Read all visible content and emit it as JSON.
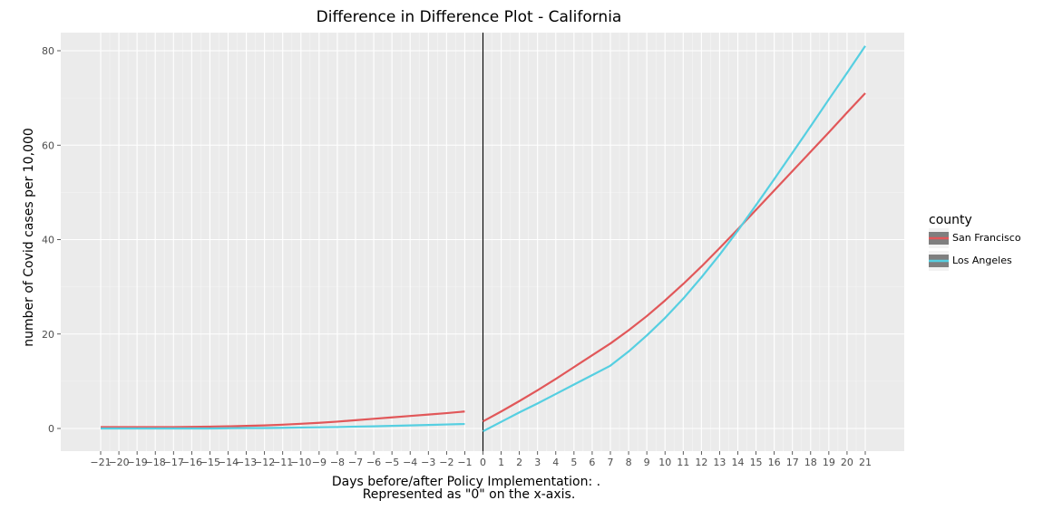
{
  "chart_data": {
    "type": "line",
    "title": "Difference in Difference Plot - California",
    "xlabel": "Days before/after Policy Implementation: .",
    "xlabel_line2": "Represented as \"0\" on the x-axis.",
    "ylabel": "number of Covid cases per 10,000",
    "xlim": [
      -21,
      21
    ],
    "ylim": [
      0,
      80
    ],
    "x_ticks": [
      -21,
      -20,
      -19,
      -18,
      -17,
      -16,
      -15,
      -14,
      -13,
      -12,
      -11,
      -10,
      -9,
      -8,
      -7,
      -6,
      -5,
      -4,
      -3,
      -2,
      -1,
      0,
      1,
      2,
      3,
      4,
      5,
      6,
      7,
      8,
      9,
      10,
      11,
      12,
      13,
      14,
      15,
      16,
      17,
      18,
      19,
      20,
      21
    ],
    "x_tick_labels": [
      "−21",
      "−20",
      "−19",
      "−18",
      "−17",
      "−16",
      "−15",
      "−14",
      "−13",
      "−12",
      "−11",
      "−10",
      "−9",
      "−8",
      "−7",
      "−6",
      "−5",
      "−4",
      "−3",
      "−2",
      "−1",
      "0",
      "1",
      "2",
      "3",
      "4",
      "5",
      "6",
      "7",
      "8",
      "9",
      "10",
      "11",
      "12",
      "13",
      "14",
      "15",
      "16",
      "17",
      "18",
      "19",
      "20",
      "21"
    ],
    "y_ticks": [
      0,
      20,
      40,
      60,
      80
    ],
    "y_tick_labels": [
      "0",
      "20",
      "40",
      "60",
      "80"
    ],
    "vline_x": 0,
    "grid": true,
    "legend": {
      "title": "county",
      "position": "right"
    },
    "series": [
      {
        "name": "San Francisco",
        "color": "#e15759",
        "segments": [
          {
            "x": [
              -21,
              -20,
              -19,
              -18,
              -17,
              -16,
              -15,
              -14,
              -13,
              -12,
              -11,
              -10,
              -9,
              -8,
              -7,
              -6,
              -5,
              -4,
              -3,
              -2,
              -1
            ],
            "y": [
              0.3,
              0.3,
              0.3,
              0.3,
              0.3,
              0.35,
              0.4,
              0.45,
              0.55,
              0.65,
              0.8,
              1.0,
              1.2,
              1.45,
              1.75,
              2.05,
              2.35,
              2.65,
              2.95,
              3.25,
              3.6
            ]
          },
          {
            "x": [
              0,
              1,
              2,
              3,
              4,
              5,
              6,
              7,
              8,
              9,
              10,
              11,
              12,
              13,
              14,
              15,
              16,
              17,
              18,
              19,
              20,
              21
            ],
            "y": [
              1.5,
              3.6,
              5.8,
              8.1,
              10.5,
              13.0,
              15.5,
              18.0,
              20.8,
              23.8,
              27.1,
              30.6,
              34.3,
              38.2,
              42.2,
              46.3,
              50.4,
              54.5,
              58.6,
              62.7,
              66.9,
              71.0
            ]
          }
        ]
      },
      {
        "name": "Los Angeles",
        "color": "#56cfe1",
        "segments": [
          {
            "x": [
              -21,
              -20,
              -19,
              -18,
              -17,
              -16,
              -15,
              -14,
              -13,
              -12,
              -11,
              -10,
              -9,
              -8,
              -7,
              -6,
              -5,
              -4,
              -3,
              -2,
              -1
            ],
            "y": [
              0.0,
              0.0,
              0.0,
              0.0,
              0.0,
              0.0,
              0.0,
              0.05,
              0.1,
              0.1,
              0.15,
              0.2,
              0.25,
              0.3,
              0.4,
              0.45,
              0.55,
              0.65,
              0.75,
              0.85,
              0.95
            ]
          },
          {
            "x": [
              0,
              1,
              2,
              3,
              4,
              5,
              6,
              7,
              8,
              9,
              10,
              11,
              12,
              13,
              14,
              15,
              16,
              17,
              18,
              19,
              20,
              21
            ],
            "y": [
              -0.6,
              1.4,
              3.4,
              5.3,
              7.3,
              9.3,
              11.3,
              13.3,
              16.3,
              19.7,
              23.4,
              27.5,
              32.0,
              36.8,
              41.9,
              47.3,
              52.8,
              58.4,
              64.0,
              69.7,
              75.3,
              81.0
            ]
          }
        ]
      }
    ]
  }
}
